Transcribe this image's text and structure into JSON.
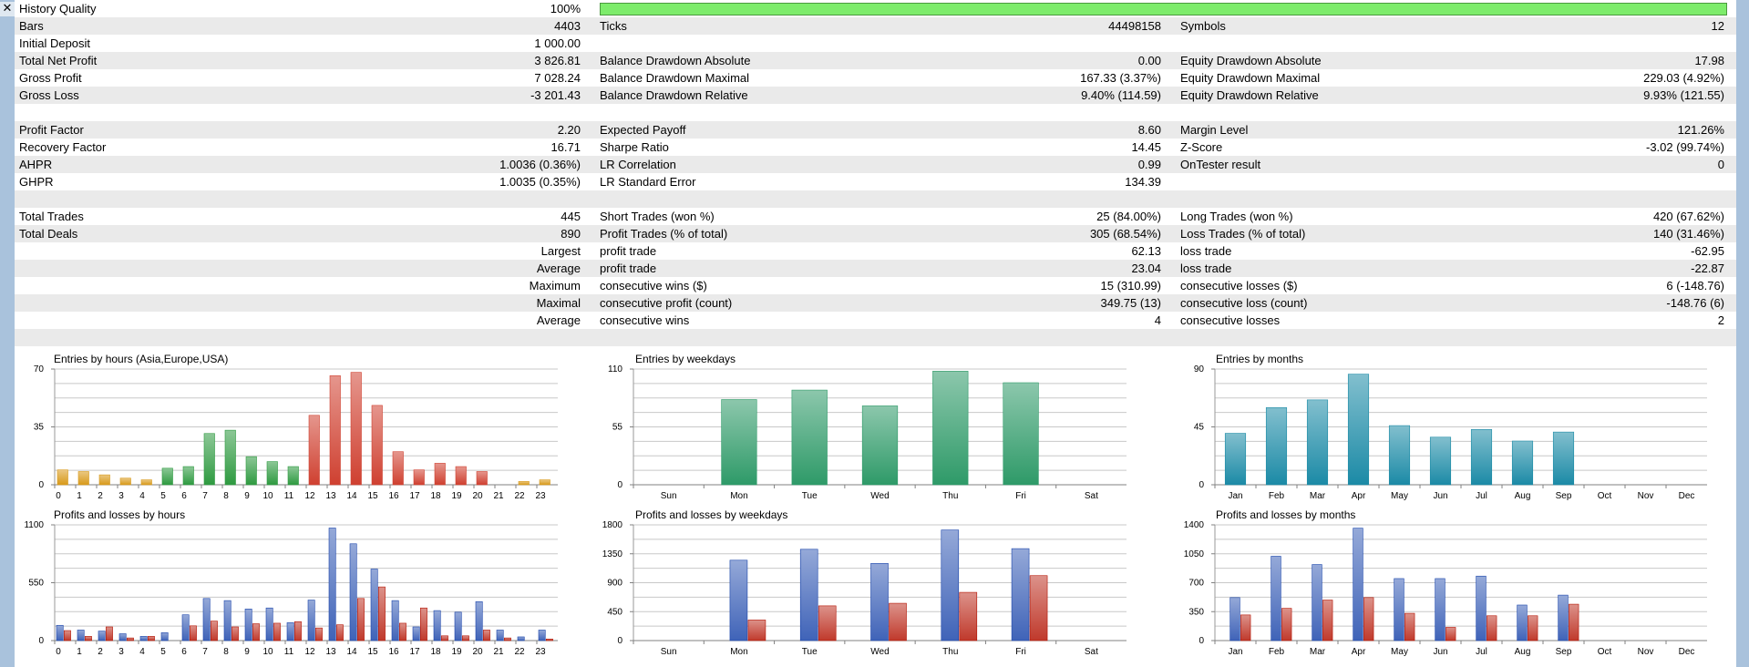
{
  "close_glyph": "✕",
  "history_quality": {
    "label": "History Quality",
    "value": "100%",
    "fill_fraction": 1.0
  },
  "rows": [
    {
      "alt": true,
      "c1": [
        "Bars",
        "4403"
      ],
      "c2": [
        "Ticks",
        "44498158"
      ],
      "c3": [
        "Symbols",
        "12"
      ]
    },
    {
      "alt": false,
      "c1": [
        "Initial Deposit",
        "1 000.00"
      ],
      "c2": [
        "",
        ""
      ],
      "c3": [
        "",
        ""
      ]
    },
    {
      "alt": true,
      "c1": [
        "Total Net Profit",
        "3 826.81"
      ],
      "c2": [
        "Balance Drawdown Absolute",
        "0.00"
      ],
      "c3": [
        "Equity Drawdown Absolute",
        "17.98"
      ]
    },
    {
      "alt": false,
      "c1": [
        "Gross Profit",
        "7 028.24"
      ],
      "c2": [
        "Balance Drawdown Maximal",
        "167.33 (3.37%)"
      ],
      "c3": [
        "Equity Drawdown Maximal",
        "229.03 (4.92%)"
      ]
    },
    {
      "alt": true,
      "c1": [
        "Gross Loss",
        "-3 201.43"
      ],
      "c2": [
        "Balance Drawdown Relative",
        "9.40% (114.59)"
      ],
      "c3": [
        "Equity Drawdown Relative",
        "9.93% (121.55)"
      ]
    },
    {
      "alt": false,
      "c1": [
        "",
        ""
      ],
      "c2": [
        "",
        ""
      ],
      "c3": [
        "",
        ""
      ]
    },
    {
      "alt": true,
      "c1": [
        "Profit Factor",
        "2.20"
      ],
      "c2": [
        "Expected Payoff",
        "8.60"
      ],
      "c3": [
        "Margin Level",
        "121.26%"
      ]
    },
    {
      "alt": false,
      "c1": [
        "Recovery Factor",
        "16.71"
      ],
      "c2": [
        "Sharpe Ratio",
        "14.45"
      ],
      "c3": [
        "Z-Score",
        "-3.02 (99.74%)"
      ]
    },
    {
      "alt": true,
      "c1": [
        "AHPR",
        "1.0036 (0.36%)"
      ],
      "c2": [
        "LR Correlation",
        "0.99"
      ],
      "c3": [
        "OnTester result",
        "0"
      ]
    },
    {
      "alt": false,
      "c1": [
        "GHPR",
        "1.0035 (0.35%)"
      ],
      "c2": [
        "LR Standard Error",
        "134.39"
      ],
      "c3": [
        "",
        ""
      ]
    },
    {
      "alt": true,
      "c1": [
        "",
        ""
      ],
      "c2": [
        "",
        ""
      ],
      "c3": [
        "",
        ""
      ]
    },
    {
      "alt": false,
      "c1": [
        "Total Trades",
        "445"
      ],
      "c2": [
        "Short Trades (won %)",
        "25 (84.00%)"
      ],
      "c3": [
        "Long Trades (won %)",
        "420 (67.62%)"
      ]
    },
    {
      "alt": true,
      "c1": [
        "Total Deals",
        "890"
      ],
      "c2": [
        "Profit Trades (% of total)",
        "305 (68.54%)"
      ],
      "c3": [
        "Loss Trades (% of total)",
        "140 (31.46%)"
      ]
    },
    {
      "alt": false,
      "c1": [
        "",
        "Largest"
      ],
      "c2": [
        "profit trade",
        "62.13"
      ],
      "c3": [
        "loss trade",
        "-62.95"
      ]
    },
    {
      "alt": true,
      "c1": [
        "",
        "Average"
      ],
      "c2": [
        "profit trade",
        "23.04"
      ],
      "c3": [
        "loss trade",
        "-22.87"
      ]
    },
    {
      "alt": false,
      "c1": [
        "",
        "Maximum"
      ],
      "c2": [
        "consecutive wins ($)",
        "15 (310.99)"
      ],
      "c3": [
        "consecutive losses ($)",
        "6 (-148.76)"
      ]
    },
    {
      "alt": true,
      "c1": [
        "",
        "Maximal"
      ],
      "c2": [
        "consecutive profit (count)",
        "349.75 (13)"
      ],
      "c3": [
        "consecutive loss (count)",
        "-148.76 (6)"
      ]
    },
    {
      "alt": false,
      "c1": [
        "",
        "Average"
      ],
      "c2": [
        "consecutive wins",
        "4"
      ],
      "c3": [
        "consecutive losses",
        "2"
      ]
    },
    {
      "alt": true,
      "c1": [
        "",
        ""
      ],
      "c2": [
        "",
        ""
      ],
      "c3": [
        "",
        ""
      ]
    }
  ],
  "chart_data": [
    {
      "type": "bar",
      "title": "Entries by hours (Asia,Europe,USA)",
      "yticks": [
        0,
        35,
        70
      ],
      "ylim": [
        0,
        70
      ],
      "categories": [
        "0",
        "1",
        "2",
        "3",
        "4",
        "5",
        "6",
        "7",
        "8",
        "9",
        "10",
        "11",
        "12",
        "13",
        "14",
        "15",
        "16",
        "17",
        "18",
        "19",
        "20",
        "21",
        "22",
        "23"
      ],
      "values": [
        9,
        8,
        6,
        4,
        3,
        10,
        11,
        31,
        33,
        17,
        14,
        11,
        42,
        66,
        68,
        48,
        20,
        9,
        13,
        11,
        8,
        0,
        2,
        3
      ],
      "colors": [
        "#d89a1a",
        "#d89a1a",
        "#d89a1a",
        "#d89a1a",
        "#d89a1a",
        "#2e9a40",
        "#2e9a40",
        "#2e9a40",
        "#2e9a40",
        "#2e9a40",
        "#2e9a40",
        "#2e9a40",
        "#cf4030",
        "#cf4030",
        "#cf4030",
        "#cf4030",
        "#cf4030",
        "#cf4030",
        "#cf4030",
        "#cf4030",
        "#cf4030",
        "#d89a1a",
        "#d89a1a",
        "#d89a1a"
      ]
    },
    {
      "type": "bar",
      "title": "Entries by weekdays",
      "yticks": [
        0,
        55,
        110
      ],
      "ylim": [
        0,
        110
      ],
      "categories": [
        "Sun",
        "Mon",
        "Tue",
        "Wed",
        "Thu",
        "Fri",
        "Sat"
      ],
      "values": [
        0,
        81,
        90,
        75,
        108,
        97,
        0
      ],
      "color": "#2e9a68"
    },
    {
      "type": "bar",
      "title": "Entries by months",
      "yticks": [
        0,
        45,
        90
      ],
      "ylim": [
        0,
        90
      ],
      "categories": [
        "Jan",
        "Feb",
        "Mar",
        "Apr",
        "May",
        "Jun",
        "Jul",
        "Aug",
        "Sep",
        "Oct",
        "Nov",
        "Dec"
      ],
      "values": [
        40,
        60,
        66,
        86,
        46,
        37,
        43,
        34,
        41,
        0,
        0,
        0
      ],
      "color": "#1b8aa6"
    },
    {
      "type": "bar",
      "title": "Profits and losses by hours",
      "yticks": [
        0,
        550,
        1100
      ],
      "ylim": [
        0,
        1100
      ],
      "categories": [
        "0",
        "1",
        "2",
        "3",
        "4",
        "5",
        "6",
        "7",
        "8",
        "9",
        "10",
        "11",
        "12",
        "13",
        "14",
        "15",
        "16",
        "17",
        "18",
        "19",
        "20",
        "21",
        "22",
        "23"
      ],
      "series": [
        {
          "name": "Profits",
          "color": "#3f63b8",
          "values": [
            145,
            100,
            90,
            65,
            40,
            75,
            245,
            400,
            380,
            300,
            310,
            170,
            385,
            1070,
            920,
            680,
            380,
            130,
            285,
            270,
            370,
            100,
            35,
            100
          ]
        },
        {
          "name": "Losses",
          "color": "#c0392b",
          "values": [
            95,
            40,
            130,
            25,
            40,
            0,
            140,
            185,
            130,
            160,
            165,
            180,
            120,
            150,
            400,
            510,
            165,
            310,
            45,
            45,
            100,
            25,
            0,
            15
          ]
        }
      ]
    },
    {
      "type": "bar",
      "title": "Profits and losses by weekdays",
      "yticks": [
        0,
        450,
        900,
        1350,
        1800
      ],
      "ylim": [
        0,
        1800
      ],
      "categories": [
        "Sun",
        "Mon",
        "Tue",
        "Wed",
        "Thu",
        "Fri",
        "Sat"
      ],
      "series": [
        {
          "name": "Profits",
          "color": "#3f63b8",
          "values": [
            0,
            1250,
            1420,
            1200,
            1720,
            1430,
            0
          ]
        },
        {
          "name": "Losses",
          "color": "#c0392b",
          "values": [
            0,
            320,
            540,
            580,
            750,
            1010,
            0
          ]
        }
      ]
    },
    {
      "type": "bar",
      "title": "Profits and losses by months",
      "yticks": [
        0,
        350,
        700,
        1050,
        1400
      ],
      "ylim": [
        0,
        1400
      ],
      "categories": [
        "Jan",
        "Feb",
        "Mar",
        "Apr",
        "May",
        "Jun",
        "Jul",
        "Aug",
        "Sep",
        "Oct",
        "Nov",
        "Dec"
      ],
      "series": [
        {
          "name": "Profits",
          "color": "#3f63b8",
          "values": [
            520,
            1020,
            920,
            1360,
            750,
            750,
            780,
            430,
            550,
            0,
            0,
            0
          ]
        },
        {
          "name": "Losses",
          "color": "#c0392b",
          "values": [
            310,
            390,
            490,
            520,
            330,
            160,
            300,
            300,
            440,
            0,
            0,
            0
          ]
        }
      ]
    }
  ]
}
